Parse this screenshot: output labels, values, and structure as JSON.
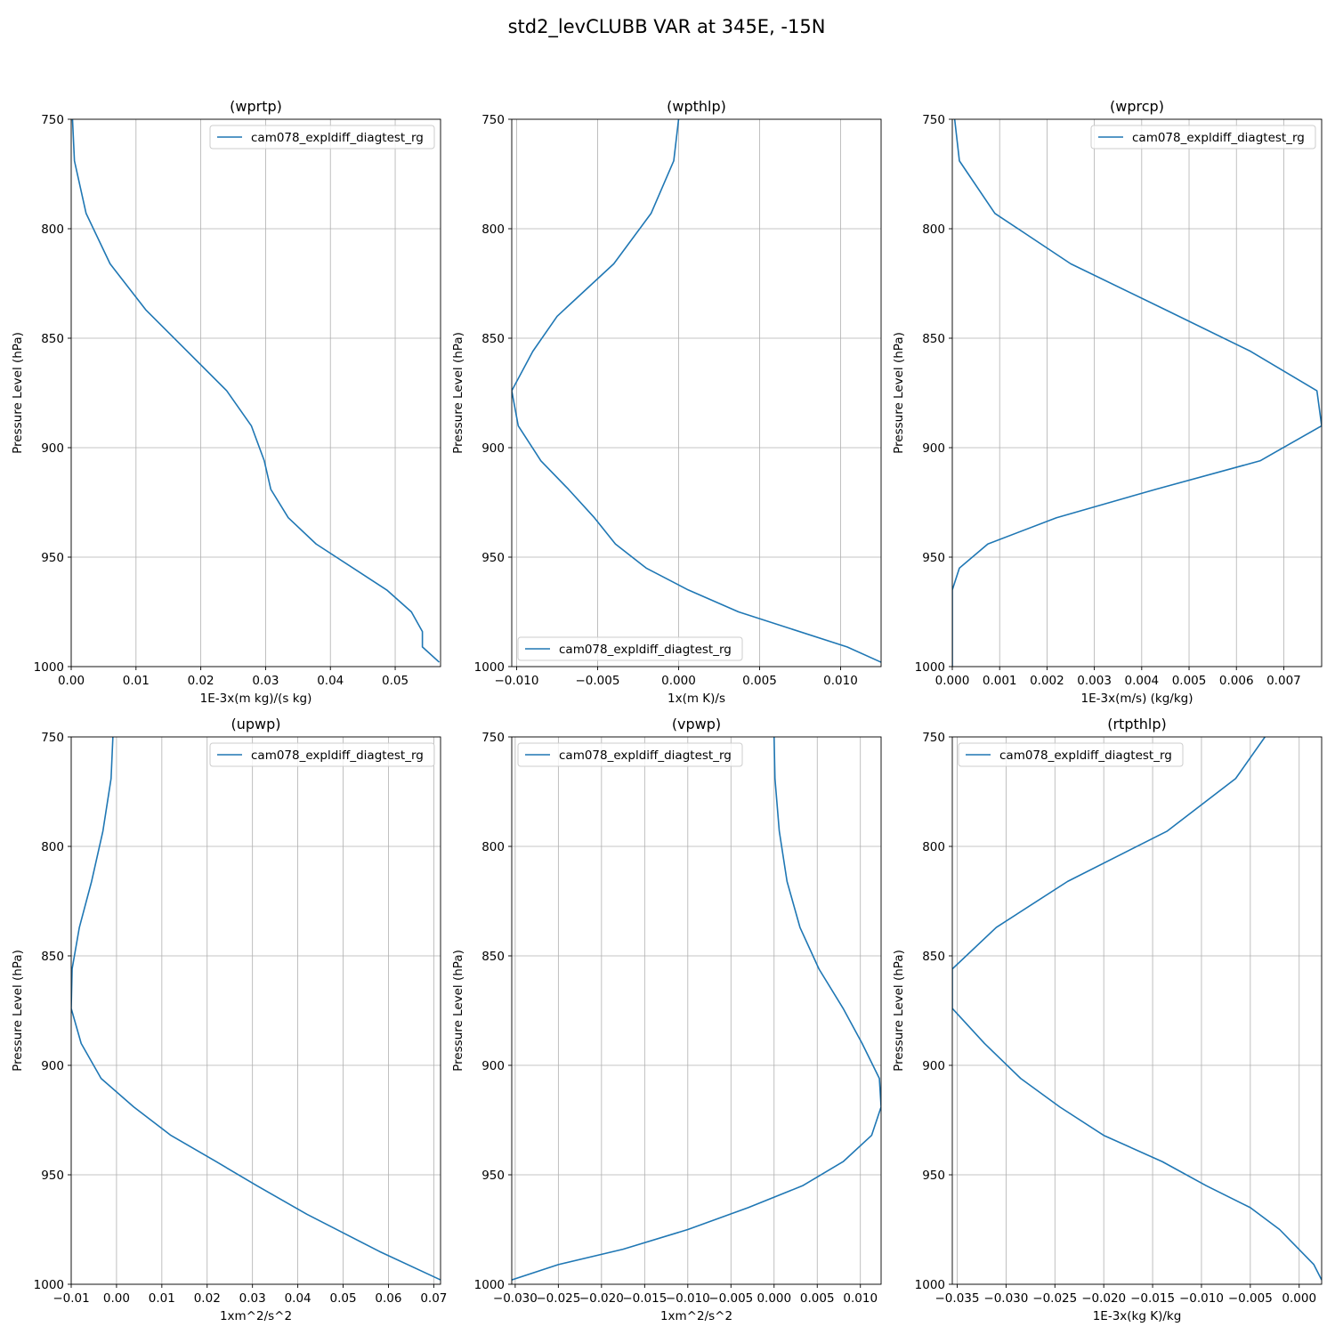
{
  "figure": {
    "title": "std2_levCLUBB VAR at 345E, -15N",
    "series_color": "#1f77b4",
    "grid_color": "#b0b0b0"
  },
  "chart_data": [
    {
      "type": "line",
      "title": "(wprtp)",
      "xlabel": "1E-3x(m kg)/(s kg)",
      "ylabel": "Pressure Level (hPa)",
      "xlim": [
        0.0,
        0.057
      ],
      "ylim": [
        1000,
        750
      ],
      "xticks": [
        0.0,
        0.01,
        0.02,
        0.03,
        0.04,
        0.05
      ],
      "xtick_labels": [
        "0.00",
        "0.01",
        "0.02",
        "0.03",
        "0.04",
        "0.05"
      ],
      "yticks": [
        750,
        800,
        850,
        900,
        950,
        1000
      ],
      "ytick_labels": [
        "750",
        "800",
        "850",
        "900",
        "950",
        "1000"
      ],
      "legend": {
        "position": "upper right",
        "label": "cam078_expldiff_diagtest_rg"
      },
      "series": [
        {
          "name": "cam078_expldiff_diagtest_rg",
          "x": [
            0.0002,
            0.0005,
            0.0023,
            0.006,
            0.0115,
            0.024,
            0.0278,
            0.0298,
            0.0308,
            0.0335,
            0.0378,
            0.0487,
            0.0525,
            0.0542,
            0.0542,
            0.0568
          ],
          "y": [
            750,
            769,
            793,
            816,
            837,
            874,
            890,
            906,
            919,
            932,
            944,
            965,
            975,
            984,
            991,
            998
          ]
        }
      ]
    },
    {
      "type": "line",
      "title": "(wpthlp)",
      "xlabel": "1x(m K)/s",
      "ylabel": "Pressure Level (hPa)",
      "xlim": [
        -0.0103,
        0.0125
      ],
      "ylim": [
        1000,
        750
      ],
      "xticks": [
        -0.01,
        -0.005,
        0.0,
        0.005,
        0.01
      ],
      "xtick_labels": [
        "−0.010",
        "−0.005",
        "0.000",
        "0.005",
        "0.010"
      ],
      "yticks": [
        750,
        800,
        850,
        900,
        950,
        1000
      ],
      "ytick_labels": [
        "750",
        "800",
        "850",
        "900",
        "950",
        "1000"
      ],
      "legend": {
        "position": "lower left",
        "label": "cam078_expldiff_diagtest_rg"
      },
      "series": [
        {
          "name": "cam078_expldiff_diagtest_rg",
          "x": [
            0.0,
            -0.0003,
            -0.0017,
            -0.004,
            -0.0075,
            -0.009,
            -0.0103,
            -0.0099,
            -0.0085,
            -0.0068,
            -0.0052,
            -0.0039,
            -0.002,
            0.0006,
            0.0037,
            0.0104,
            0.0125
          ],
          "y": [
            750,
            769,
            793,
            816,
            840,
            856,
            874,
            890,
            906,
            919,
            932,
            944,
            955,
            965,
            975,
            991,
            998
          ]
        }
      ]
    },
    {
      "type": "line",
      "title": "(wprcp)",
      "xlabel": "1E-3x(m/s) (kg/kg)",
      "ylabel": "Pressure Level (hPa)",
      "xlim": [
        0.0,
        0.0078
      ],
      "ylim": [
        1000,
        750
      ],
      "xticks": [
        0.0,
        0.001,
        0.002,
        0.003,
        0.004,
        0.005,
        0.006,
        0.007
      ],
      "xtick_labels": [
        "0.000",
        "0.001",
        "0.002",
        "0.003",
        "0.004",
        "0.005",
        "0.006",
        "0.007"
      ],
      "yticks": [
        750,
        800,
        850,
        900,
        950,
        1000
      ],
      "ytick_labels": [
        "750",
        "800",
        "850",
        "900",
        "950",
        "1000"
      ],
      "legend": {
        "position": "upper right",
        "label": "cam078_expldiff_diagtest_rg"
      },
      "series": [
        {
          "name": "cam078_expldiff_diagtest_rg",
          "x": [
            5e-05,
            0.00015,
            0.0009,
            0.0025,
            0.0045,
            0.0063,
            0.0077,
            0.0078,
            0.0065,
            0.0043,
            0.0022,
            0.00075,
            0.00015,
            0.0,
            0.0
          ],
          "y": [
            750,
            769,
            793,
            816,
            837,
            856,
            874,
            890,
            906,
            919,
            932,
            944,
            955,
            965,
            1000
          ]
        }
      ]
    },
    {
      "type": "line",
      "title": "(upwp)",
      "xlabel": "1xm^2/s^2",
      "ylabel": "Pressure Level (hPa)",
      "xlim": [
        -0.01,
        0.0715
      ],
      "ylim": [
        1000,
        750
      ],
      "xticks": [
        -0.01,
        0.0,
        0.01,
        0.02,
        0.03,
        0.04,
        0.05,
        0.06,
        0.07
      ],
      "xtick_labels": [
        "−0.01",
        "0.00",
        "0.01",
        "0.02",
        "0.03",
        "0.04",
        "0.05",
        "0.06",
        "0.07"
      ],
      "yticks": [
        750,
        800,
        850,
        900,
        950,
        1000
      ],
      "ytick_labels": [
        "750",
        "800",
        "850",
        "900",
        "950",
        "1000"
      ],
      "legend": {
        "position": "upper right",
        "label": "cam078_expldiff_diagtest_rg"
      },
      "series": [
        {
          "name": "cam078_expldiff_diagtest_rg",
          "x": [
            -0.0008,
            -0.0012,
            -0.003,
            -0.0055,
            -0.0082,
            -0.0098,
            -0.01,
            -0.0078,
            -0.0034,
            0.0038,
            0.012,
            0.022,
            0.031,
            0.042,
            0.058,
            0.0715
          ],
          "y": [
            750,
            769,
            793,
            816,
            837,
            856,
            874,
            890,
            906,
            919,
            932,
            944,
            955,
            968,
            985,
            998
          ]
        }
      ]
    },
    {
      "type": "line",
      "title": "(vpwp)",
      "xlabel": "1xm^2/s^2",
      "ylabel": "Pressure Level (hPa)",
      "xlim": [
        -0.0304,
        0.0124
      ],
      "ylim": [
        1000,
        750
      ],
      "xticks": [
        -0.03,
        -0.025,
        -0.02,
        -0.015,
        -0.01,
        -0.005,
        0.0,
        0.005,
        0.01
      ],
      "xtick_labels": [
        "−0.030",
        "−0.025",
        "−0.020",
        "−0.015",
        "−0.010",
        "−0.005",
        "0.000",
        "0.005",
        "0.010"
      ],
      "yticks": [
        750,
        800,
        850,
        900,
        950,
        1000
      ],
      "ytick_labels": [
        "750",
        "800",
        "850",
        "900",
        "950",
        "1000"
      ],
      "legend": {
        "position": "upper left",
        "label": "cam078_expldiff_diagtest_rg"
      },
      "series": [
        {
          "name": "cam078_expldiff_diagtest_rg",
          "x": [
            0.0,
            0.0001,
            0.0006,
            0.0015,
            0.003,
            0.0052,
            0.008,
            0.0102,
            0.0122,
            0.0124,
            0.0113,
            0.008,
            0.0033,
            -0.003,
            -0.01,
            -0.0175,
            -0.025,
            -0.0304
          ],
          "y": [
            750,
            769,
            793,
            816,
            837,
            856,
            874,
            890,
            906,
            919,
            932,
            944,
            955,
            965,
            975,
            984,
            991,
            998
          ]
        }
      ]
    },
    {
      "type": "line",
      "title": "(rtpthlp)",
      "xlabel": "1E-3x(kg K)/kg",
      "ylabel": "Pressure Level (hPa)",
      "xlim": [
        -0.0355,
        0.0023
      ],
      "ylim": [
        1000,
        750
      ],
      "xticks": [
        -0.035,
        -0.03,
        -0.025,
        -0.02,
        -0.015,
        -0.01,
        -0.005,
        0.0
      ],
      "xtick_labels": [
        "−0.035",
        "−0.030",
        "−0.025",
        "−0.020",
        "−0.015",
        "−0.010",
        "−0.005",
        "0.000"
      ],
      "yticks": [
        750,
        800,
        850,
        900,
        950,
        1000
      ],
      "ytick_labels": [
        "750",
        "800",
        "850",
        "900",
        "950",
        "1000"
      ],
      "legend": {
        "position": "upper left",
        "label": "cam078_expldiff_diagtest_rg"
      },
      "series": [
        {
          "name": "cam078_expldiff_diagtest_rg",
          "x": [
            -0.0035,
            -0.0065,
            -0.0135,
            -0.0237,
            -0.031,
            -0.0355,
            -0.0355,
            -0.0322,
            -0.0285,
            -0.0245,
            -0.02,
            -0.014,
            -0.0095,
            -0.005,
            -0.002,
            0.0015,
            0.0023
          ],
          "y": [
            750,
            769,
            793,
            816,
            837,
            856,
            874,
            890,
            906,
            919,
            932,
            944,
            955,
            965,
            975,
            991,
            998
          ]
        }
      ]
    }
  ]
}
